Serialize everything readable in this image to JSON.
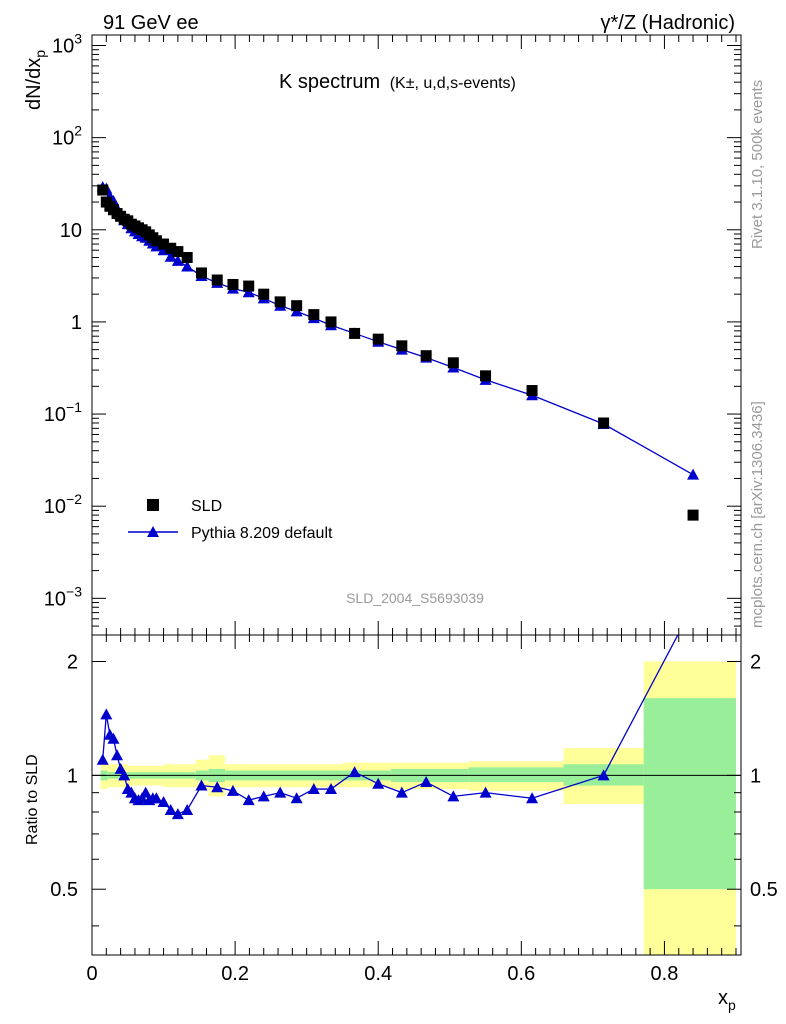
{
  "header": {
    "left": "91 GeV ee",
    "right": "γ*/Z (Hadronic)"
  },
  "side_labels": {
    "version": "Rivet 3.1.10,  500k events",
    "source": "mcplots.cern.ch [arXiv:1306.3436]"
  },
  "colors": {
    "data_marker": "#000000",
    "mc_line": "#0000cc",
    "band_inner": "#99ee99",
    "band_outer": "#ffff99",
    "frame": "#000000"
  },
  "chart_data": [
    {
      "type": "scatter",
      "panel": "main",
      "title": "K spectrum",
      "title_suffix": "(K±, u,d,s-events)",
      "ylabel": "dN/dx_p",
      "xlabel": "",
      "yscale": "log",
      "xlim": [
        0,
        0.907
      ],
      "ylim": [
        0.0004,
        1300
      ],
      "y_ticks": [
        {
          "value": 0.001,
          "base": "10",
          "exp": "−3"
        },
        {
          "value": 0.01,
          "base": "10",
          "exp": "−2"
        },
        {
          "value": 0.1,
          "base": "10",
          "exp": "−1"
        },
        {
          "value": 1,
          "base": "1",
          "exp": ""
        },
        {
          "value": 10,
          "base": "10",
          "exp": ""
        },
        {
          "value": 100,
          "base": "10",
          "exp": "2"
        },
        {
          "value": 1000,
          "base": "10",
          "exp": "3"
        }
      ],
      "watermark": "SLD_2004_S5693039",
      "legend_position": "lower-left",
      "series": [
        {
          "name": "SLD",
          "marker": "square",
          "x": [
            0.015,
            0.02,
            0.025,
            0.03,
            0.035,
            0.04,
            0.045,
            0.05,
            0.055,
            0.06,
            0.065,
            0.07,
            0.075,
            0.08,
            0.085,
            0.09,
            0.1,
            0.11,
            0.12,
            0.133,
            0.153,
            0.175,
            0.197,
            0.219,
            0.24,
            0.263,
            0.286,
            0.31,
            0.334,
            0.367,
            0.4,
            0.433,
            0.467,
            0.505,
            0.55,
            0.615,
            0.715,
            0.84
          ],
          "y": [
            27,
            20,
            18,
            16.5,
            15,
            14,
            13,
            12.5,
            11.5,
            11,
            10.5,
            10,
            9.5,
            8.8,
            8.2,
            7.6,
            7,
            6.3,
            5.8,
            5,
            3.4,
            2.85,
            2.55,
            2.45,
            2.0,
            1.65,
            1.5,
            1.2,
            1.0,
            0.75,
            0.65,
            0.55,
            0.43,
            0.36,
            0.26,
            0.18,
            0.08,
            0.008
          ]
        },
        {
          "name": "Pythia 8.209 default",
          "marker": "triangle",
          "x": [
            0.015,
            0.02,
            0.025,
            0.03,
            0.035,
            0.04,
            0.045,
            0.05,
            0.055,
            0.06,
            0.065,
            0.07,
            0.075,
            0.08,
            0.085,
            0.09,
            0.1,
            0.11,
            0.12,
            0.133,
            0.153,
            0.175,
            0.197,
            0.219,
            0.24,
            0.263,
            0.286,
            0.31,
            0.334,
            0.367,
            0.4,
            0.433,
            0.467,
            0.505,
            0.55,
            0.615,
            0.715,
            0.84
          ],
          "y": [
            29,
            28,
            23,
            20.5,
            17,
            14.5,
            12.7,
            11.5,
            10.4,
            9.6,
            9.0,
            8.5,
            8.2,
            7.6,
            7.1,
            6.6,
            6.0,
            5.1,
            4.6,
            4.0,
            3.15,
            2.65,
            2.3,
            2.1,
            1.8,
            1.5,
            1.3,
            1.1,
            0.92,
            0.75,
            0.61,
            0.5,
            0.41,
            0.32,
            0.235,
            0.16,
            0.078,
            0.022
          ]
        }
      ]
    },
    {
      "type": "line",
      "panel": "ratio",
      "ylabel": "Ratio to SLD",
      "xlabel": "x_p",
      "xlim": [
        0,
        0.907
      ],
      "ylim": [
        0.335,
        2.35
      ],
      "yscale": "log",
      "x_ticks": [
        "0",
        "0.2",
        "0.4",
        "0.6",
        "0.8"
      ],
      "y_ticks": [
        "0.5",
        "1",
        "2"
      ],
      "series": [
        {
          "name": "Pythia 8.209 default",
          "x": [
            0.015,
            0.02,
            0.025,
            0.03,
            0.035,
            0.04,
            0.045,
            0.05,
            0.055,
            0.06,
            0.065,
            0.07,
            0.075,
            0.08,
            0.085,
            0.09,
            0.1,
            0.11,
            0.12,
            0.133,
            0.153,
            0.175,
            0.197,
            0.219,
            0.24,
            0.263,
            0.286,
            0.31,
            0.334,
            0.367,
            0.4,
            0.433,
            0.467,
            0.505,
            0.55,
            0.615,
            0.715,
            0.84
          ],
          "y": [
            1.1,
            1.45,
            1.28,
            1.25,
            1.13,
            1.04,
            1.0,
            0.92,
            0.9,
            0.87,
            0.86,
            0.87,
            0.9,
            0.86,
            0.87,
            0.87,
            0.85,
            0.81,
            0.79,
            0.81,
            0.94,
            0.93,
            0.91,
            0.86,
            0.88,
            0.9,
            0.87,
            0.92,
            0.92,
            1.02,
            0.95,
            0.9,
            0.96,
            0.88,
            0.9,
            0.87,
            1.0,
            2.8
          ]
        }
      ],
      "bands": [
        {
          "x0": 0.012,
          "x1": 0.022,
          "stat": [
            0.97,
            1.03
          ],
          "total": [
            0.92,
            1.08
          ]
        },
        {
          "x0": 0.022,
          "x1": 0.05,
          "stat": [
            0.98,
            1.02
          ],
          "total": [
            0.93,
            1.07
          ]
        },
        {
          "x0": 0.05,
          "x1": 0.1,
          "stat": [
            0.98,
            1.02
          ],
          "total": [
            0.94,
            1.06
          ]
        },
        {
          "x0": 0.1,
          "x1": 0.145,
          "stat": [
            0.98,
            1.02
          ],
          "total": [
            0.93,
            1.07
          ]
        },
        {
          "x0": 0.145,
          "x1": 0.163,
          "stat": [
            0.97,
            1.03
          ],
          "total": [
            0.92,
            1.1
          ]
        },
        {
          "x0": 0.163,
          "x1": 0.186,
          "stat": [
            0.96,
            1.04
          ],
          "total": [
            0.88,
            1.13
          ]
        },
        {
          "x0": 0.186,
          "x1": 0.35,
          "stat": [
            0.97,
            1.03
          ],
          "total": [
            0.93,
            1.07
          ]
        },
        {
          "x0": 0.35,
          "x1": 0.418,
          "stat": [
            0.97,
            1.03
          ],
          "total": [
            0.93,
            1.08
          ]
        },
        {
          "x0": 0.418,
          "x1": 0.526,
          "stat": [
            0.96,
            1.04
          ],
          "total": [
            0.92,
            1.08
          ]
        },
        {
          "x0": 0.526,
          "x1": 0.659,
          "stat": [
            0.96,
            1.05
          ],
          "total": [
            0.91,
            1.09
          ]
        },
        {
          "x0": 0.659,
          "x1": 0.771,
          "stat": [
            0.94,
            1.07
          ],
          "total": [
            0.84,
            1.18
          ]
        },
        {
          "x0": 0.771,
          "x1": 0.9,
          "stat": [
            0.5,
            1.6
          ],
          "total": [
            0.3,
            2.0
          ]
        }
      ]
    }
  ]
}
